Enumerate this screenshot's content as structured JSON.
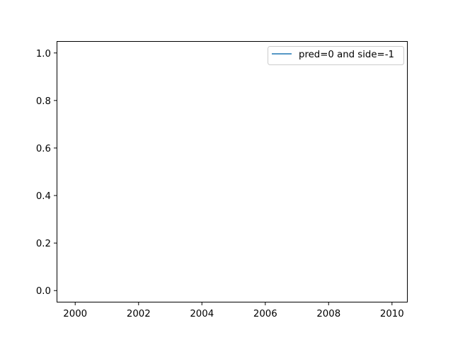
{
  "chart_data": {
    "type": "line",
    "title": "",
    "xlabel": "",
    "ylabel": "",
    "x_axis": {
      "type": "date",
      "lim": [
        "1999-06-01",
        "2010-07-01"
      ],
      "ticks": [
        "2000",
        "2002",
        "2004",
        "2006",
        "2008",
        "2010"
      ]
    },
    "y_axis": {
      "lim": [
        -0.05,
        1.05
      ],
      "ticks": [
        "0.0",
        "0.2",
        "0.4",
        "0.6",
        "0.8",
        "1.0"
      ]
    },
    "grid": false,
    "legend": {
      "placement": "upper right"
    },
    "series": [
      {
        "name": "pred=0 and side=-1",
        "color": "#1f77b4",
        "points": []
      }
    ]
  }
}
